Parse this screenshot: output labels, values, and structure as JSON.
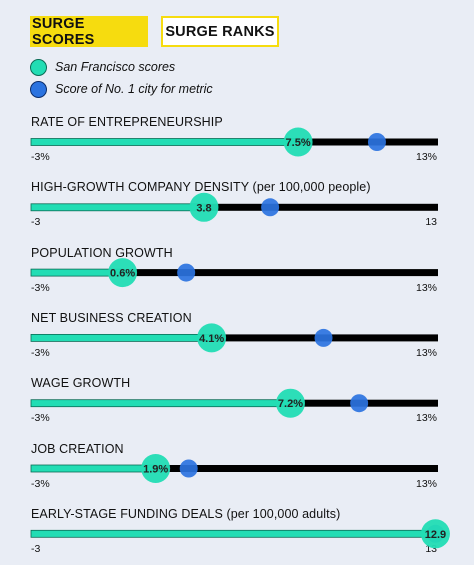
{
  "tabs": [
    {
      "label": "SURGE SCORES",
      "active": true
    },
    {
      "label": "SURGE RANKS",
      "active": false
    }
  ],
  "legend": [
    {
      "label": "San Francisco scores",
      "color": "#22ddb4"
    },
    {
      "label": "Score of No. 1 city for metric",
      "color": "#2b73e0"
    }
  ],
  "colors": {
    "tab_active": "#f6dc0f",
    "track": "#000000",
    "fill": "#22ddb4",
    "sf_dot": "#22ddb4",
    "top_dot": "#2b73e0"
  },
  "chart_data": {
    "type": "dot-range",
    "series": [
      {
        "name": "San Francisco scores"
      },
      {
        "name": "Score of No. 1 city for metric"
      }
    ],
    "metrics": [
      {
        "title": "RATE OF ENTREPRENEURSHIP",
        "min_label": "-3%",
        "max_label": "13%",
        "min": -3,
        "max": 13,
        "sf": 7.5,
        "sf_label": "7.5%",
        "top": 10.6
      },
      {
        "title": "HIGH-GROWTH COMPANY DENSITY (per 100,000 people)",
        "min_label": "-3",
        "max_label": "13",
        "min": -3,
        "max": 13,
        "sf": 3.8,
        "sf_label": "3.8",
        "top": 6.4
      },
      {
        "title": "POPULATION GROWTH",
        "min_label": "-3%",
        "max_label": "13%",
        "min": -3,
        "max": 13,
        "sf": 0.6,
        "sf_label": "0.6%",
        "top": 3.1
      },
      {
        "title": "NET BUSINESS CREATION",
        "min_label": "-3%",
        "max_label": "13%",
        "min": -3,
        "max": 13,
        "sf": 4.1,
        "sf_label": "4.1%",
        "top": 8.5
      },
      {
        "title": "WAGE GROWTH",
        "min_label": "-3%",
        "max_label": "13%",
        "min": -3,
        "max": 13,
        "sf": 7.2,
        "sf_label": "7.2%",
        "top": 9.9
      },
      {
        "title": "JOB CREATION",
        "min_label": "-3%",
        "max_label": "13%",
        "min": -3,
        "max": 13,
        "sf": 1.9,
        "sf_label": "1.9%",
        "top": 3.2
      },
      {
        "title": "EARLY-STAGE FUNDING DEALS (per 100,000 adults)",
        "min_label": "-3",
        "max_label": "13",
        "min": -3,
        "max": 13,
        "sf": 12.9,
        "sf_label": "12.9",
        "top": 12.9
      }
    ]
  }
}
